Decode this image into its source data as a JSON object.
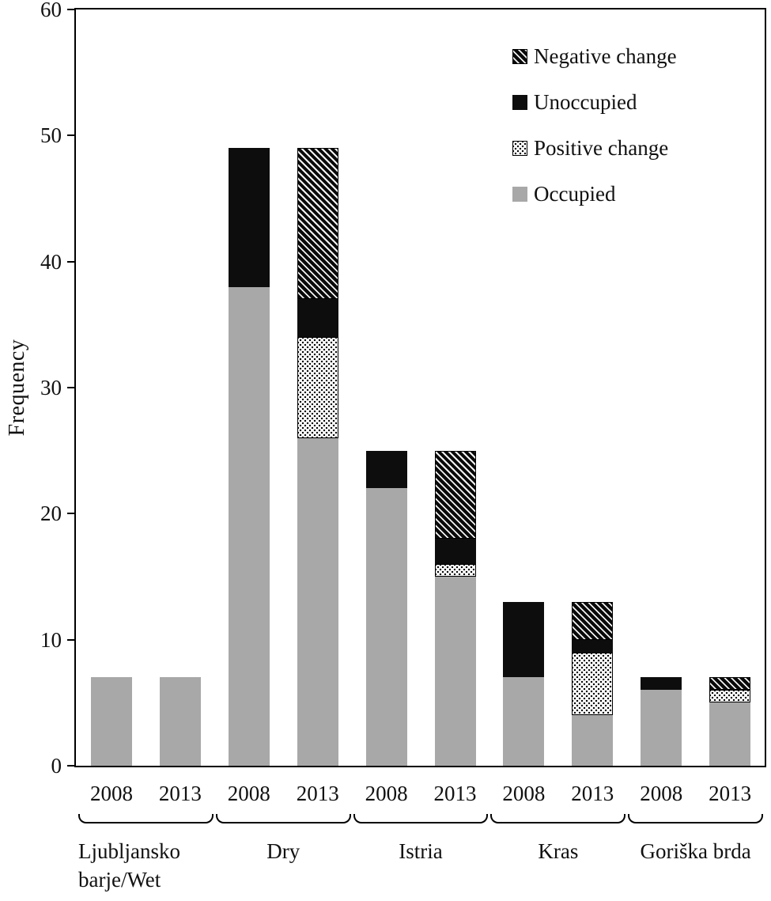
{
  "chart_data": {
    "type": "bar",
    "stacked": true,
    "title": "",
    "xlabel": "",
    "ylabel": "Frequency",
    "ylim": [
      0,
      60
    ],
    "yticks": [
      0,
      10,
      20,
      30,
      40,
      50,
      60
    ],
    "grid": false,
    "legend_position": "top-right-inside",
    "series": [
      {
        "name": "Occupied",
        "pattern": "solid-gray",
        "color": "#a8a8a8"
      },
      {
        "name": "Positive change",
        "pattern": "dots",
        "color": "#000000"
      },
      {
        "name": "Unoccupied",
        "pattern": "solid-black",
        "color": "#0d0d0d"
      },
      {
        "name": "Negative change",
        "pattern": "diagonal-hatch",
        "color": "#0d0d0d"
      }
    ],
    "legend_order": [
      "Negative change",
      "Unoccupied",
      "Positive change",
      "Occupied"
    ],
    "groups": [
      {
        "label": "Ljubljansko barje/Wet",
        "label_lines": [
          "Ljubljansko",
          "barje/Wet"
        ],
        "label_align": "left",
        "bars": [
          {
            "year": "2008",
            "values": {
              "Occupied": 7,
              "Positive change": 0,
              "Unoccupied": 0,
              "Negative change": 0
            }
          },
          {
            "year": "2013",
            "values": {
              "Occupied": 7,
              "Positive change": 0,
              "Unoccupied": 0,
              "Negative change": 0
            }
          }
        ]
      },
      {
        "label": "Dry",
        "label_lines": [
          "Dry"
        ],
        "label_align": "center",
        "bars": [
          {
            "year": "2008",
            "values": {
              "Occupied": 38,
              "Positive change": 0,
              "Unoccupied": 11,
              "Negative change": 0
            }
          },
          {
            "year": "2013",
            "values": {
              "Occupied": 26,
              "Positive change": 8,
              "Unoccupied": 3,
              "Negative change": 12
            }
          }
        ]
      },
      {
        "label": "Istria",
        "label_lines": [
          "Istria"
        ],
        "label_align": "center",
        "bars": [
          {
            "year": "2008",
            "values": {
              "Occupied": 22,
              "Positive change": 0,
              "Unoccupied": 3,
              "Negative change": 0
            }
          },
          {
            "year": "2013",
            "values": {
              "Occupied": 15,
              "Positive change": 1,
              "Unoccupied": 2,
              "Negative change": 7
            }
          }
        ]
      },
      {
        "label": "Kras",
        "label_lines": [
          "Kras"
        ],
        "label_align": "center",
        "bars": [
          {
            "year": "2008",
            "values": {
              "Occupied": 7,
              "Positive change": 0,
              "Unoccupied": 6,
              "Negative change": 0
            }
          },
          {
            "year": "2013",
            "values": {
              "Occupied": 4,
              "Positive change": 5,
              "Unoccupied": 1,
              "Negative change": 3
            }
          }
        ]
      },
      {
        "label": "Goriška brda",
        "label_lines": [
          "Goriška brda"
        ],
        "label_align": "center",
        "bars": [
          {
            "year": "2008",
            "values": {
              "Occupied": 6,
              "Positive change": 0,
              "Unoccupied": 1,
              "Negative change": 0
            }
          },
          {
            "year": "2013",
            "values": {
              "Occupied": 5,
              "Positive change": 1,
              "Unoccupied": 0,
              "Negative change": 1
            }
          }
        ]
      }
    ]
  }
}
